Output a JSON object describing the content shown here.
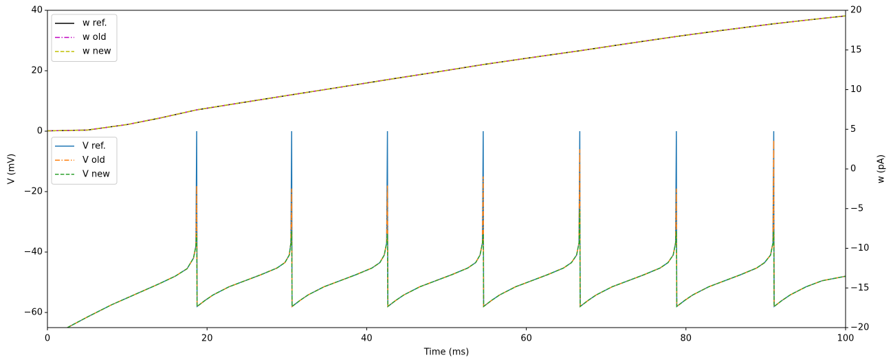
{
  "chart_data": {
    "type": "line",
    "xlabel": "Time (ms)",
    "ylabel": "V (mV)",
    "y2label": "w (pA)",
    "xlim": [
      0,
      100
    ],
    "xticks": [
      0,
      20,
      40,
      60,
      80,
      100
    ],
    "ylim": [
      -65,
      40
    ],
    "yticks": [
      {
        "value": -60,
        "label": "−60"
      },
      {
        "value": -40,
        "label": "−40"
      },
      {
        "value": -20,
        "label": "−20"
      },
      0,
      20,
      40
    ],
    "y2lim": [
      -20,
      20
    ],
    "y2ticks": [
      {
        "value": -20,
        "label": "−20"
      },
      {
        "value": -15,
        "label": "−15"
      },
      {
        "value": -10,
        "label": "−10"
      },
      {
        "value": -5,
        "label": "−5"
      },
      0,
      5,
      10,
      15,
      20
    ],
    "legend_loc": {
      "y": "center left",
      "y2": "upper left"
    },
    "x": [
      2.5,
      5,
      8,
      11,
      14,
      16,
      17.5,
      18.3,
      18.6,
      18.7,
      18.75,
      19.75,
      20.75,
      22.75,
      24.75,
      26.75,
      28.75,
      29.75,
      30.3,
      30.5,
      30.6,
      30.65,
      31.65,
      32.65,
      34.65,
      36.65,
      38.65,
      40.65,
      41.65,
      42.2,
      42.5,
      42.6,
      42.65,
      43.65,
      44.65,
      46.65,
      48.65,
      50.65,
      52.65,
      53.65,
      54.2,
      54.5,
      54.6,
      54.65,
      55.65,
      56.65,
      58.65,
      60.65,
      62.65,
      64.65,
      65.65,
      66.3,
      66.6,
      66.7,
      66.75,
      67.75,
      68.75,
      70.75,
      72.75,
      74.75,
      76.75,
      77.75,
      78.4,
      78.7,
      78.8,
      78.85,
      79.85,
      80.85,
      82.85,
      84.85,
      86.85,
      88.85,
      89.85,
      90.6,
      90.9,
      91.0,
      91.05,
      92.05,
      93.05,
      95.05,
      97.05,
      100
    ],
    "series": [
      {
        "name": "V ref.",
        "color": "#1f77b4",
        "style": "solid",
        "axis": "y",
        "values": [
          -65,
          -61.5,
          -57.5,
          -54,
          -50.5,
          -48,
          -45.5,
          -42,
          -38,
          0,
          -58,
          -56,
          -54.2,
          -51.5,
          -49.5,
          -47.5,
          -45.3,
          -43.5,
          -41,
          -37,
          0,
          -58,
          -56,
          -54.2,
          -51.5,
          -49.5,
          -47.5,
          -45.3,
          -43.5,
          -41,
          -37,
          0,
          -58,
          -56,
          -54.2,
          -51.5,
          -49.5,
          -47.5,
          -45.3,
          -43.5,
          -41,
          -37,
          0,
          -58,
          -56,
          -54.2,
          -51.5,
          -49.5,
          -47.5,
          -45.3,
          -43.5,
          -41,
          -37,
          0,
          -58,
          -56,
          -54.2,
          -51.5,
          -49.5,
          -47.5,
          -45.3,
          -43.5,
          -41,
          -37,
          0,
          -58,
          -56,
          -54.2,
          -51.5,
          -49.5,
          -47.5,
          -45.3,
          -43.5,
          -41,
          -37,
          0,
          -58,
          -56,
          -54.2,
          -51.5,
          -49.5,
          -48
        ]
      },
      {
        "name": "V old",
        "color": "#ff7f0e",
        "style": "dashdot",
        "axis": "y",
        "values": [
          -65,
          -61.5,
          -57.5,
          -54,
          -50.5,
          -48,
          -45.5,
          -42,
          -38,
          -18,
          -58,
          -56,
          -54.2,
          -51.5,
          -49.5,
          -47.5,
          -45.3,
          -43.5,
          -41,
          -37,
          -19,
          -58,
          -56,
          -54.2,
          -51.5,
          -49.5,
          -47.5,
          -45.3,
          -43.5,
          -41,
          -37,
          -18,
          -58,
          -56,
          -54.2,
          -51.5,
          -49.5,
          -47.5,
          -45.3,
          -43.5,
          -41,
          -37,
          -15,
          -58,
          -56,
          -54.2,
          -51.5,
          -49.5,
          -47.5,
          -45.3,
          -43.5,
          -41,
          -37,
          -6,
          -58,
          -56,
          -54.2,
          -51.5,
          -49.5,
          -47.5,
          -45.3,
          -43.5,
          -41,
          -37,
          -19,
          -58,
          -56,
          -54.2,
          -51.5,
          -49.5,
          -47.5,
          -45.3,
          -43.5,
          -41,
          -37,
          -3,
          -58,
          -56,
          -54.2,
          -51.5,
          -49.5,
          -48
        ]
      },
      {
        "name": "V new",
        "color": "#2ca02c",
        "style": "dashed",
        "axis": "y",
        "values": [
          -65,
          -61.5,
          -57.5,
          -54,
          -50.5,
          -48,
          -45.5,
          -42,
          -38,
          -34,
          -58,
          -56,
          -54.2,
          -51.5,
          -49.5,
          -47.5,
          -45.3,
          -43.5,
          -41,
          -37,
          -33,
          -58,
          -56,
          -54.2,
          -51.5,
          -49.5,
          -47.5,
          -45.3,
          -43.5,
          -41,
          -37,
          -34,
          -58,
          -56,
          -54.2,
          -51.5,
          -49.5,
          -47.5,
          -45.3,
          -43.5,
          -41,
          -37,
          -34,
          -58,
          -56,
          -54.2,
          -51.5,
          -49.5,
          -47.5,
          -45.3,
          -43.5,
          -41,
          -37,
          -26,
          -58,
          -56,
          -54.2,
          -51.5,
          -49.5,
          -47.5,
          -45.3,
          -43.5,
          -41,
          -37,
          -33,
          -58,
          -56,
          -54.2,
          -51.5,
          -49.5,
          -47.5,
          -45.3,
          -43.5,
          -41,
          -37,
          -33,
          -58,
          -56,
          -54.2,
          -51.5,
          -49.5,
          -48
        ]
      },
      {
        "name": "w ref.",
        "color": "#000000",
        "style": "solid",
        "axis": "y2",
        "x": [
          0,
          5,
          10,
          14,
          18.7,
          24,
          30.6,
          36,
          42.6,
          48,
          54.6,
          60,
          66.7,
          72,
          78.8,
          84,
          91,
          95,
          100
        ],
        "values": [
          4.8,
          4.9,
          5.6,
          6.4,
          7.45,
          8.3,
          9.35,
          10.2,
          11.26,
          12.1,
          13.16,
          13.95,
          14.9,
          15.7,
          16.7,
          17.4,
          18.3,
          18.75,
          19.3
        ]
      },
      {
        "name": "w old",
        "color": "#bf00bf",
        "style": "dashdot",
        "axis": "y2",
        "x": [
          0,
          5,
          10,
          14,
          18.7,
          24,
          30.6,
          36,
          42.6,
          48,
          54.6,
          60,
          66.7,
          72,
          78.8,
          84,
          91,
          95,
          100
        ],
        "values": [
          4.8,
          4.9,
          5.6,
          6.4,
          7.45,
          8.3,
          9.35,
          10.2,
          11.26,
          12.1,
          13.16,
          13.95,
          14.9,
          15.7,
          16.7,
          17.4,
          18.3,
          18.75,
          19.3
        ]
      },
      {
        "name": "w new",
        "color": "#bfbf00",
        "style": "dashed",
        "axis": "y2",
        "x": [
          0,
          5,
          10,
          14,
          18.7,
          24,
          30.6,
          36,
          42.6,
          48,
          54.6,
          60,
          66.7,
          72,
          78.8,
          84,
          91,
          95,
          100
        ],
        "values": [
          4.8,
          4.9,
          5.6,
          6.4,
          7.45,
          8.3,
          9.35,
          10.2,
          11.26,
          12.1,
          13.16,
          13.95,
          14.9,
          15.7,
          16.7,
          17.4,
          18.3,
          18.75,
          19.3
        ]
      }
    ]
  }
}
